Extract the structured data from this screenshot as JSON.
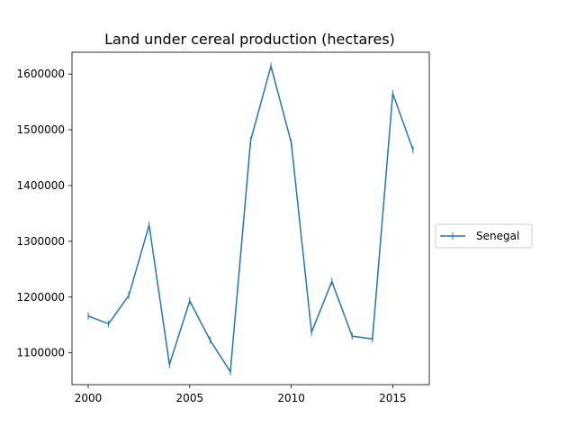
{
  "chart_data": {
    "type": "line",
    "title": "Land under cereal production (hectares)",
    "xlabel": "",
    "ylabel": "",
    "xlim": [
      1999.2,
      2016.8
    ],
    "ylim": [
      1043000,
      1639000
    ],
    "x_ticks": [
      2000,
      2005,
      2010,
      2015
    ],
    "y_ticks": [
      1100000,
      1200000,
      1300000,
      1400000,
      1500000,
      1600000
    ],
    "grid": false,
    "legend_position": "center-right, outside plot",
    "series": [
      {
        "name": "Senegal",
        "color": "#1f77b4",
        "marker": "vertical-tick",
        "x": [
          2000,
          2001,
          2002,
          2003,
          2004,
          2005,
          2006,
          2007,
          2008,
          2009,
          2010,
          2011,
          2012,
          2013,
          2014,
          2015,
          2016
        ],
        "values": [
          1166000,
          1152000,
          1203000,
          1329000,
          1079000,
          1193000,
          1123000,
          1066000,
          1481000,
          1614000,
          1477000,
          1137000,
          1228000,
          1130000,
          1125000,
          1565000,
          1464000
        ]
      }
    ]
  }
}
